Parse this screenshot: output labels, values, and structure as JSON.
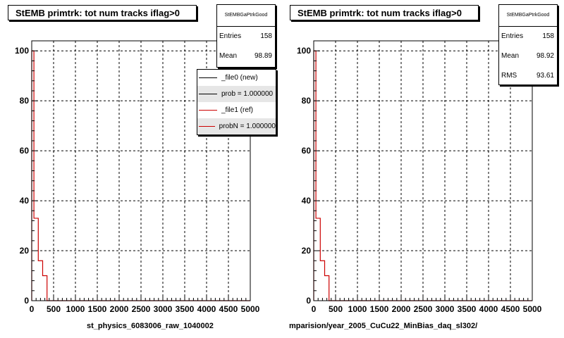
{
  "colors": {
    "new": "#000000",
    "ref": "#cc0000",
    "grid": "#000000"
  },
  "panels": [
    {
      "title": "StEMB primtrk: tot num tracks iflag>0",
      "stats": {
        "name": "StEMBGaPtrkGood",
        "rows": [
          {
            "label": "Entries",
            "value": "158"
          },
          {
            "label": "Mean",
            "value": "98.89"
          }
        ]
      },
      "legend": [
        {
          "label": "_file0 (new)",
          "color": "#000000"
        },
        {
          "label": "prob = 1.000000",
          "color": "#000000"
        },
        {
          "label": "_file1 (ref)",
          "color": "#cc0000"
        },
        {
          "label": "probN = 1.000000",
          "color": "#cc0000"
        }
      ],
      "footer": "st_physics_6083006_raw_1040002"
    },
    {
      "title": "StEMB primtrk: tot num tracks iflag>0",
      "stats": {
        "name": "StEMBGaPtrkGood",
        "rows": [
          {
            "label": "Entries",
            "value": "158"
          },
          {
            "label": "Mean",
            "value": "98.92"
          },
          {
            "label": "RMS",
            "value": "93.61"
          }
        ]
      },
      "legend": [],
      "footer": "mparision/year_2005_CuCu22_MinBias_daq_sl302/"
    }
  ],
  "chart_data": [
    {
      "type": "histogram",
      "title": "StEMB primtrk: tot num tracks iflag>0",
      "xlim": [
        0,
        5000
      ],
      "ylim": [
        0,
        104
      ],
      "xticks": [
        0,
        500,
        1000,
        1500,
        2000,
        2500,
        3000,
        3500,
        4000,
        4500,
        5000
      ],
      "yticks": [
        0,
        20,
        40,
        60,
        80,
        100
      ],
      "grid": true,
      "legend_position": "top-right",
      "bin_edges": [
        0,
        50,
        100,
        150,
        200,
        250,
        300,
        350,
        400,
        450,
        5000
      ],
      "series": [
        {
          "name": "_file1 (ref)",
          "color": "#cc0000",
          "values": [
            100,
            33,
            33,
            16,
            16,
            10,
            10,
            0,
            0,
            0
          ]
        }
      ]
    },
    {
      "type": "histogram",
      "title": "StEMB primtrk: tot num tracks iflag>0",
      "xlim": [
        0,
        5000
      ],
      "ylim": [
        0,
        104
      ],
      "xticks": [
        0,
        500,
        1000,
        1500,
        2000,
        2500,
        3000,
        3500,
        4000,
        4500,
        5000
      ],
      "yticks": [
        0,
        20,
        40,
        60,
        80,
        100
      ],
      "grid": true,
      "bin_edges": [
        0,
        50,
        100,
        150,
        200,
        250,
        300,
        350,
        400,
        450,
        5000
      ],
      "series": [
        {
          "name": "_file1 (ref)",
          "color": "#cc0000",
          "values": [
            100,
            33,
            33,
            16,
            16,
            10,
            10,
            0,
            0,
            0
          ]
        }
      ]
    }
  ]
}
